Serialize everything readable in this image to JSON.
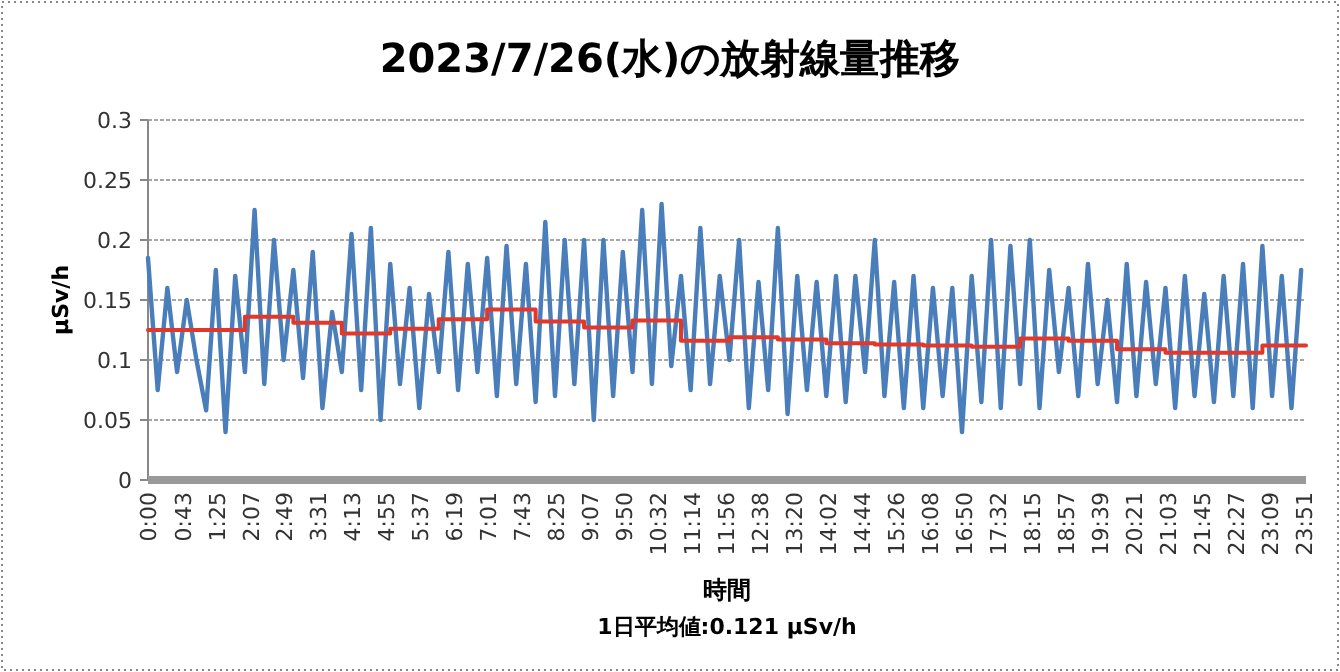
{
  "chart_data": {
    "type": "line",
    "title": "2023/7/26(水)の放射線量推移",
    "xlabel": "時間",
    "ylabel": "µSv/h",
    "annotations": [
      "1日平均値:0.121 µSv/h"
    ],
    "xlim": [
      0,
      23.9
    ],
    "xticks": [
      {
        "value": 0,
        "label": "0:00"
      },
      {
        "value": 0.717,
        "label": "0:43"
      },
      {
        "value": 1.417,
        "label": "1:25"
      },
      {
        "value": 2.117,
        "label": "2:07"
      },
      {
        "value": 2.817,
        "label": "2:49"
      },
      {
        "value": 3.517,
        "label": "3:31"
      },
      {
        "value": 4.217,
        "label": "4:13"
      },
      {
        "value": 4.917,
        "label": "4:55"
      },
      {
        "value": 5.617,
        "label": "5:37"
      },
      {
        "value": 6.317,
        "label": "6:19"
      },
      {
        "value": 7.017,
        "label": "7:01"
      },
      {
        "value": 7.717,
        "label": "7:43"
      },
      {
        "value": 8.417,
        "label": "8:25"
      },
      {
        "value": 9.117,
        "label": "9:07"
      },
      {
        "value": 9.833,
        "label": "9:50"
      },
      {
        "value": 10.533,
        "label": "10:32"
      },
      {
        "value": 11.233,
        "label": "11:14"
      },
      {
        "value": 11.933,
        "label": "11:56"
      },
      {
        "value": 12.633,
        "label": "12:38"
      },
      {
        "value": 13.333,
        "label": "13:20"
      },
      {
        "value": 14.033,
        "label": "14:02"
      },
      {
        "value": 14.733,
        "label": "14:44"
      },
      {
        "value": 15.433,
        "label": "15:26"
      },
      {
        "value": 16.133,
        "label": "16:08"
      },
      {
        "value": 16.833,
        "label": "16:50"
      },
      {
        "value": 17.533,
        "label": "17:32"
      },
      {
        "value": 18.25,
        "label": "18:15"
      },
      {
        "value": 18.95,
        "label": "18:57"
      },
      {
        "value": 19.65,
        "label": "19:39"
      },
      {
        "value": 20.35,
        "label": "20:21"
      },
      {
        "value": 21.05,
        "label": "21:03"
      },
      {
        "value": 21.75,
        "label": "21:45"
      },
      {
        "value": 22.45,
        "label": "22:27"
      },
      {
        "value": 23.15,
        "label": "23:09"
      },
      {
        "value": 23.85,
        "label": "23:51"
      }
    ],
    "ylim": [
      0,
      0.3
    ],
    "yticks": [
      0,
      0.05,
      0.1,
      0.15,
      0.2,
      0.25,
      0.3
    ],
    "grid": "y",
    "series": [
      {
        "color": "#4a7ebb",
        "x": [
          0,
          0.2,
          0.4,
          0.6,
          0.8,
          1,
          1.2,
          1.4,
          1.6,
          1.8,
          2,
          2.2,
          2.4,
          2.6,
          2.8,
          3,
          3.2,
          3.4,
          3.6,
          3.8,
          4,
          4.2,
          4.4,
          4.6,
          4.8,
          5,
          5.2,
          5.4,
          5.6,
          5.8,
          6,
          6.2,
          6.4,
          6.6,
          6.8,
          7,
          7.2,
          7.4,
          7.6,
          7.8,
          8,
          8.2,
          8.4,
          8.6,
          8.8,
          9,
          9.2,
          9.4,
          9.6,
          9.8,
          10,
          10.2,
          10.4,
          10.6,
          10.8,
          11,
          11.2,
          11.4,
          11.6,
          11.8,
          12,
          12.2,
          12.4,
          12.6,
          12.8,
          13,
          13.2,
          13.4,
          13.6,
          13.8,
          14,
          14.2,
          14.4,
          14.6,
          14.8,
          15,
          15.2,
          15.4,
          15.6,
          15.8,
          16,
          16.2,
          16.4,
          16.6,
          16.8,
          17,
          17.2,
          17.4,
          17.6,
          17.8,
          18,
          18.2,
          18.4,
          18.6,
          18.8,
          19,
          19.2,
          19.4,
          19.6,
          19.8,
          20,
          20.2,
          20.4,
          20.6,
          20.8,
          21,
          21.2,
          21.4,
          21.6,
          21.8,
          22,
          22.2,
          22.4,
          22.6,
          22.8,
          23,
          23.2,
          23.4,
          23.6,
          23.8
        ],
        "values": [
          0.185,
          0.075,
          0.16,
          0.09,
          0.15,
          0.1,
          0.058,
          0.175,
          0.04,
          0.17,
          0.09,
          0.225,
          0.08,
          0.2,
          0.1,
          0.175,
          0.085,
          0.19,
          0.06,
          0.14,
          0.09,
          0.205,
          0.075,
          0.21,
          0.05,
          0.18,
          0.08,
          0.16,
          0.06,
          0.155,
          0.09,
          0.19,
          0.075,
          0.18,
          0.09,
          0.185,
          0.07,
          0.195,
          0.08,
          0.18,
          0.065,
          0.215,
          0.07,
          0.2,
          0.08,
          0.2,
          0.05,
          0.2,
          0.07,
          0.19,
          0.09,
          0.225,
          0.08,
          0.23,
          0.095,
          0.17,
          0.075,
          0.21,
          0.08,
          0.17,
          0.1,
          0.2,
          0.06,
          0.165,
          0.075,
          0.21,
          0.055,
          0.17,
          0.075,
          0.165,
          0.07,
          0.17,
          0.065,
          0.17,
          0.09,
          0.2,
          0.07,
          0.165,
          0.06,
          0.17,
          0.06,
          0.16,
          0.07,
          0.16,
          0.04,
          0.17,
          0.065,
          0.2,
          0.06,
          0.195,
          0.08,
          0.2,
          0.06,
          0.175,
          0.09,
          0.16,
          0.07,
          0.18,
          0.08,
          0.15,
          0.065,
          0.18,
          0.07,
          0.165,
          0.08,
          0.16,
          0.06,
          0.17,
          0.07,
          0.155,
          0.065,
          0.17,
          0.07,
          0.18,
          0.06,
          0.195,
          0.07,
          0.17,
          0.06,
          0.175
        ]
      },
      {
        "type": "step",
        "color": "#e2382b",
        "x": [
          0,
          1,
          2,
          3,
          4,
          5,
          6,
          7,
          8,
          9,
          10,
          11,
          12,
          13,
          14,
          15,
          16,
          17,
          18,
          19,
          20,
          21,
          22,
          23,
          23.9
        ],
        "values": [
          0.125,
          0.125,
          0.136,
          0.131,
          0.122,
          0.126,
          0.134,
          0.142,
          0.132,
          0.127,
          0.133,
          0.116,
          0.119,
          0.117,
          0.114,
          0.113,
          0.112,
          0.111,
          0.118,
          0.116,
          0.109,
          0.106,
          0.106,
          0.112,
          0.112
        ]
      }
    ]
  }
}
